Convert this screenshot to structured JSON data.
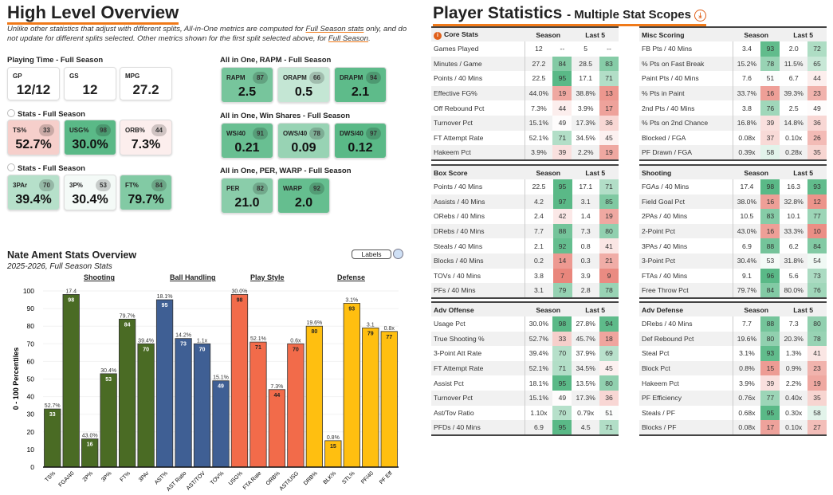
{
  "overview": {
    "title": "High Level Overview",
    "note_parts": [
      "Unlike other statistics that adjust with different splits, All-in-One metrics are computed for ",
      "Full Season stats",
      " only, and do not update for different splits selected. Other metrics shown for the first split selected above, for ",
      "Full Season",
      "."
    ]
  },
  "playing_time": {
    "label": "Playing Time - Full Season",
    "cards": [
      {
        "label": "GP",
        "value": "12/12"
      },
      {
        "label": "GS",
        "value": "12"
      },
      {
        "label": "MPG",
        "value": "27.2"
      }
    ]
  },
  "stat_groups": [
    {
      "label": "Stats - Full Season",
      "cards": [
        {
          "label": "TS%",
          "pct": 33,
          "value": "52.7%"
        },
        {
          "label": "USG%",
          "pct": 98,
          "value": "30.0%"
        },
        {
          "label": "ORB%",
          "pct": 44,
          "value": "7.3%"
        }
      ]
    },
    {
      "label": "Stats - Full Season",
      "cards": [
        {
          "label": "3PAr",
          "pct": 70,
          "value": "39.4%"
        },
        {
          "label": "3P%",
          "pct": 53,
          "value": "30.4%"
        },
        {
          "label": "FT%",
          "pct": 84,
          "value": "79.7%"
        }
      ]
    },
    {
      "label": "All in One, RAPM - Full Season",
      "cards": [
        {
          "label": "RAPM",
          "pct": 87,
          "value": "2.5"
        },
        {
          "label": "ORAPM",
          "pct": 66,
          "value": "0.5"
        },
        {
          "label": "DRAPM",
          "pct": 94,
          "value": "2.1"
        }
      ]
    },
    {
      "label": "All in One, Win Shares - Full Season",
      "cards": [
        {
          "label": "WS/40",
          "pct": 91,
          "value": "0.21"
        },
        {
          "label": "OWS/40",
          "pct": 78,
          "value": "0.09"
        },
        {
          "label": "DWS/40",
          "pct": 97,
          "value": "0.12"
        }
      ]
    },
    {
      "label": "All in One, PER, WARP - Full Season",
      "cards": [
        {
          "label": "PER",
          "pct": 82,
          "value": "21.0"
        },
        {
          "label": "WARP",
          "pct": 92,
          "value": "2.0"
        }
      ]
    }
  ],
  "player_stats": {
    "title": "Player Statistics",
    "subtitle": "- Multiple Stat Scopes",
    "col_season": "Season",
    "col_last5": "Last 5",
    "tables": [
      {
        "title": "Core Stats",
        "rows": [
          [
            "Games Played",
            "12",
            "--",
            "5",
            "--"
          ],
          [
            "Minutes / Game",
            "27.2",
            "84",
            "28.5",
            "83"
          ],
          [
            "Points / 40 Mins",
            "22.5",
            "95",
            "17.1",
            "71"
          ],
          [
            "Effective FG%",
            "44.0%",
            "19",
            "38.8%",
            "13"
          ],
          [
            "Off Rebound Pct",
            "7.3%",
            "44",
            "3.9%",
            "17"
          ],
          [
            "Turnover Pct",
            "15.1%",
            "49",
            "17.3%",
            "36"
          ],
          [
            "FT Attempt Rate",
            "52.1%",
            "71",
            "34.5%",
            "45"
          ],
          [
            "Hakeem Pct",
            "3.9%",
            "39",
            "2.2%",
            "19"
          ]
        ]
      },
      {
        "title": "Misc Scoring",
        "rows": [
          [
            "FB Pts / 40 Mins",
            "3.4",
            "93",
            "2.0",
            "72"
          ],
          [
            "% Pts on Fast Break",
            "15.2%",
            "78",
            "11.5%",
            "65"
          ],
          [
            "Paint Pts / 40 Mins",
            "7.6",
            "51",
            "6.7",
            "44"
          ],
          [
            "% Pts in Paint",
            "33.7%",
            "16",
            "39.3%",
            "23"
          ],
          [
            "2nd Pts / 40 Mins",
            "3.8",
            "76",
            "2.5",
            "49"
          ],
          [
            "% Pts on 2nd Chance",
            "16.8%",
            "39",
            "14.8%",
            "36"
          ],
          [
            "Blocked / FGA",
            "0.08x",
            "37",
            "0.10x",
            "26"
          ],
          [
            "PF Drawn / FGA",
            "0.39x",
            "58",
            "0.28x",
            "35"
          ]
        ]
      },
      {
        "title": "Box Score",
        "rows": [
          [
            "Points / 40 Mins",
            "22.5",
            "95",
            "17.1",
            "71"
          ],
          [
            "Assists / 40 Mins",
            "4.2",
            "97",
            "3.1",
            "85"
          ],
          [
            "ORebs / 40 Mins",
            "2.4",
            "42",
            "1.4",
            "19"
          ],
          [
            "DRebs / 40 Mins",
            "7.7",
            "88",
            "7.3",
            "80"
          ],
          [
            "Steals / 40 Mins",
            "2.1",
            "92",
            "0.8",
            "41"
          ],
          [
            "Blocks / 40 Mins",
            "0.2",
            "14",
            "0.3",
            "21"
          ],
          [
            "TOVs / 40 Mins",
            "3.8",
            "7",
            "3.9",
            "9"
          ],
          [
            "PFs / 40 Mins",
            "3.1",
            "79",
            "2.8",
            "78"
          ]
        ]
      },
      {
        "title": "Shooting",
        "rows": [
          [
            "FGAs / 40 Mins",
            "17.4",
            "98",
            "16.3",
            "93"
          ],
          [
            "Field Goal Pct",
            "38.0%",
            "16",
            "32.8%",
            "12"
          ],
          [
            "2PAs / 40 Mins",
            "10.5",
            "83",
            "10.1",
            "77"
          ],
          [
            "2-Point Pct",
            "43.0%",
            "16",
            "33.3%",
            "10"
          ],
          [
            "3PAs / 40 Mins",
            "6.9",
            "88",
            "6.2",
            "84"
          ],
          [
            "3-Point Pct",
            "30.4%",
            "53",
            "31.8%",
            "54"
          ],
          [
            "FTAs / 40 Mins",
            "9.1",
            "96",
            "5.6",
            "73"
          ],
          [
            "Free Throw Pct",
            "79.7%",
            "84",
            "80.0%",
            "76"
          ]
        ]
      },
      {
        "title": "Adv Offense",
        "rows": [
          [
            "Usage Pct",
            "30.0%",
            "98",
            "27.8%",
            "94"
          ],
          [
            "True Shooting %",
            "52.7%",
            "33",
            "45.7%",
            "18"
          ],
          [
            "3-Point Att Rate",
            "39.4%",
            "70",
            "37.9%",
            "69"
          ],
          [
            "FT Attempt Rate",
            "52.1%",
            "71",
            "34.5%",
            "45"
          ],
          [
            "Assist Pct",
            "18.1%",
            "95",
            "13.5%",
            "80"
          ],
          [
            "Turnover Pct",
            "15.1%",
            "49",
            "17.3%",
            "36"
          ],
          [
            "Ast/Tov Ratio",
            "1.10x",
            "70",
            "0.79x",
            "51"
          ],
          [
            "PFDs / 40 Mins",
            "6.9",
            "95",
            "4.5",
            "71"
          ]
        ]
      },
      {
        "title": "Adv Defense",
        "rows": [
          [
            "DRebs / 40 Mins",
            "7.7",
            "88",
            "7.3",
            "80"
          ],
          [
            "Def Rebound Pct",
            "19.6%",
            "80",
            "20.3%",
            "78"
          ],
          [
            "Steal Pct",
            "3.1%",
            "93",
            "1.3%",
            "41"
          ],
          [
            "Block Pct",
            "0.8%",
            "15",
            "0.9%",
            "23"
          ],
          [
            "Hakeem Pct",
            "3.9%",
            "39",
            "2.2%",
            "19"
          ],
          [
            "PF Efficiency",
            "0.76x",
            "77",
            "0.40x",
            "35"
          ],
          [
            "Steals / PF",
            "0.68x",
            "95",
            "0.30x",
            "58"
          ],
          [
            "Blocks / PF",
            "0.08x",
            "17",
            "0.10x",
            "27"
          ]
        ]
      }
    ]
  },
  "chart": {
    "title": "Nate Ament Stats Overview",
    "subtitle": "2025-2026, Full Season Stats",
    "labels_button": "Labels"
  },
  "chart_data": {
    "type": "bar",
    "title": "Nate Ament Stats Overview",
    "ylabel": "0 - 100 Percentiles",
    "ylim": [
      0,
      100
    ],
    "yticks": [
      0,
      10,
      20,
      30,
      40,
      50,
      60,
      70,
      80,
      90,
      100
    ],
    "groups": [
      {
        "name": "Shooting",
        "color": "#4a6b24"
      },
      {
        "name": "Ball Handling",
        "color": "#3f5f94"
      },
      {
        "name": "Play Style",
        "color": "#f26b4a"
      },
      {
        "name": "Defense",
        "color": "#ffbf10"
      }
    ],
    "categories": [
      "TS%",
      "FGA/40",
      "2P%",
      "3P%",
      "FT%",
      "3PAr",
      "AST%",
      "AST Ratio",
      "AST/TOV",
      "TOV%",
      "USG%",
      "FTA Rate",
      "ORB%",
      "AST/USG",
      "DRB%",
      "BLK%",
      "STL%",
      "PF/40",
      "PF Eff"
    ],
    "values": [
      33,
      98,
      16,
      53,
      84,
      70,
      95,
      73,
      70,
      49,
      98,
      71,
      44,
      70,
      80,
      15,
      93,
      79,
      77
    ],
    "value_labels": [
      "52.7%",
      "17.4",
      "43.0%",
      "30.4%",
      "79.7%",
      "39.4%",
      "18.1%",
      "14.2%",
      "1.1x",
      "15.1%",
      "30.0%",
      "52.1%",
      "7.3%",
      "0.6x",
      "19.6%",
      "0.8%",
      "3.1%",
      "3.1",
      "0.8x"
    ],
    "group_index": [
      0,
      0,
      0,
      0,
      0,
      0,
      1,
      1,
      1,
      1,
      2,
      2,
      2,
      2,
      3,
      3,
      3,
      3,
      3
    ]
  }
}
